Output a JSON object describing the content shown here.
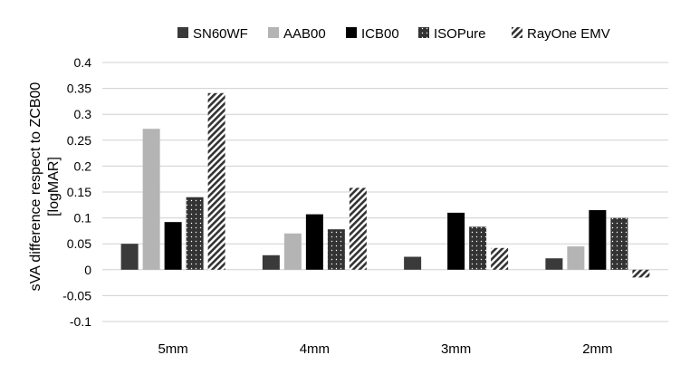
{
  "chart_data": {
    "type": "bar",
    "categories": [
      "5mm",
      "4mm",
      "3mm",
      "2mm"
    ],
    "series": [
      {
        "name": "SN60WF",
        "values": [
          0.05,
          0.028,
          0.025,
          0.022
        ],
        "color": "#3a3a3a",
        "pattern": "solid"
      },
      {
        "name": "AAB00",
        "values": [
          0.272,
          0.07,
          null,
          0.045
        ],
        "color": "#b4b4b4",
        "pattern": "solid"
      },
      {
        "name": "ICB00",
        "values": [
          0.092,
          0.107,
          0.11,
          0.115
        ],
        "color": "#000000",
        "pattern": "solid"
      },
      {
        "name": "ISOPure",
        "values": [
          0.14,
          0.078,
          0.083,
          0.1
        ],
        "color": "#333333",
        "pattern": "dots"
      },
      {
        "name": "RayOne EMV",
        "values": [
          0.341,
          0.158,
          0.042,
          -0.015
        ],
        "color": "#333333",
        "pattern": "diagonal"
      }
    ],
    "ylabel_line1": "sVA difference respect to ZCB00",
    "ylabel_line2": "[logMAR]",
    "ylim": [
      -0.1,
      0.4
    ],
    "yticks": [
      0.4,
      0.35,
      0.3,
      0.25,
      0.2,
      0.15,
      0.1,
      0.05,
      0,
      -0.05,
      -0.1
    ],
    "ytick_labels": [
      "0.4",
      "0.35",
      "0.3",
      "0.25",
      "0.2",
      "0.15",
      "0.1",
      "0.05",
      "0",
      "-0.05",
      "-0.1"
    ],
    "grid": true,
    "legend_position": "top"
  }
}
